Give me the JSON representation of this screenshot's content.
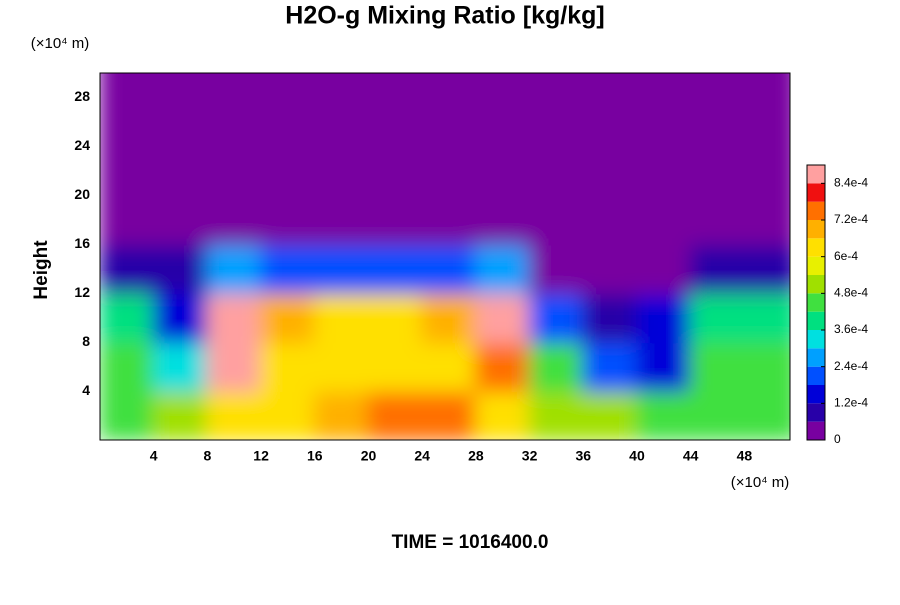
{
  "chart_data": {
    "type": "contour",
    "title": "H2O-g Mixing Ratio [kg/kg]",
    "ylabel": "Height",
    "x_unit_label": "(×10⁴ m)",
    "y_unit_label": "(×10⁴ m)",
    "time_label": "TIME = 1016400.0",
    "xlim": [
      0,
      51.4
    ],
    "ylim": [
      0,
      30
    ],
    "xticks": [
      4,
      8,
      12,
      16,
      20,
      24,
      28,
      32,
      36,
      40,
      44,
      48
    ],
    "yticks": [
      4,
      8,
      12,
      16,
      20,
      24,
      28
    ],
    "x": [
      2,
      6,
      10,
      14,
      18,
      22,
      26,
      30,
      34,
      38,
      42,
      46,
      50
    ],
    "y": [
      2,
      6,
      10,
      14,
      18,
      22,
      26,
      30
    ],
    "z": [
      [
        0.00045,
        0.0005,
        0.00065,
        0.00065,
        0.0007,
        0.00075,
        0.00075,
        0.00065,
        0.0005,
        0.0005,
        0.00045,
        0.00045,
        0.00045
      ],
      [
        0.00045,
        0.0003,
        0.00085,
        0.00065,
        0.00065,
        0.0006,
        0.00065,
        0.00075,
        0.00045,
        0.0002,
        0.00015,
        0.00045,
        0.00045
      ],
      [
        0.0004,
        0.00015,
        0.00085,
        0.0007,
        0.00065,
        0.00065,
        0.0007,
        0.00085,
        0.0002,
        0.0001,
        0.00015,
        0.0004,
        0.0004
      ],
      [
        0.0001,
        0.0001,
        0.00025,
        0.0002,
        0.0002,
        0.0002,
        0.0002,
        0.00025,
        5e-05,
        0,
        0,
        0.0001,
        0.0001
      ],
      [
        0,
        0,
        0,
        0,
        0,
        0,
        0,
        0,
        0,
        0,
        0,
        0,
        0
      ],
      [
        0,
        0,
        0,
        0,
        0,
        0,
        0,
        0,
        0,
        0,
        0,
        0,
        0
      ],
      [
        0,
        0,
        0,
        0,
        0,
        0,
        0,
        0,
        0,
        0,
        0,
        0,
        0
      ],
      [
        0,
        0,
        0,
        0,
        0,
        0,
        0,
        0,
        0,
        0,
        0,
        0,
        0
      ]
    ],
    "levels": [
      0,
      6e-05,
      0.00012,
      0.00018,
      0.00024,
      0.0003,
      0.00036,
      0.00042,
      0.00048,
      0.00054,
      0.0006,
      0.00066,
      0.00072,
      0.00078,
      0.00084,
      0.0009
    ],
    "colors": [
      "#7800a0",
      "#2800a8",
      "#0000d8",
      "#0050ff",
      "#00a0ff",
      "#00e0e0",
      "#00e080",
      "#40e040",
      "#a0e000",
      "#e8f000",
      "#ffe000",
      "#ffb000",
      "#ff7000",
      "#f01010",
      "#ffa0a0"
    ],
    "colorbar_ticks": [
      0,
      {
        "value": 0.00012,
        "label": "1.2e-4"
      },
      {
        "value": 0.00024,
        "label": "2.4e-4"
      },
      {
        "value": 0.00036,
        "label": "3.6e-4"
      },
      {
        "value": 0.00048,
        "label": "4.8e-4"
      },
      {
        "value": 0.0006,
        "label": "6e-4"
      },
      {
        "value": 0.00072,
        "label": "7.2e-4"
      },
      {
        "value": 0.00084,
        "label": "8.4e-4"
      }
    ]
  }
}
